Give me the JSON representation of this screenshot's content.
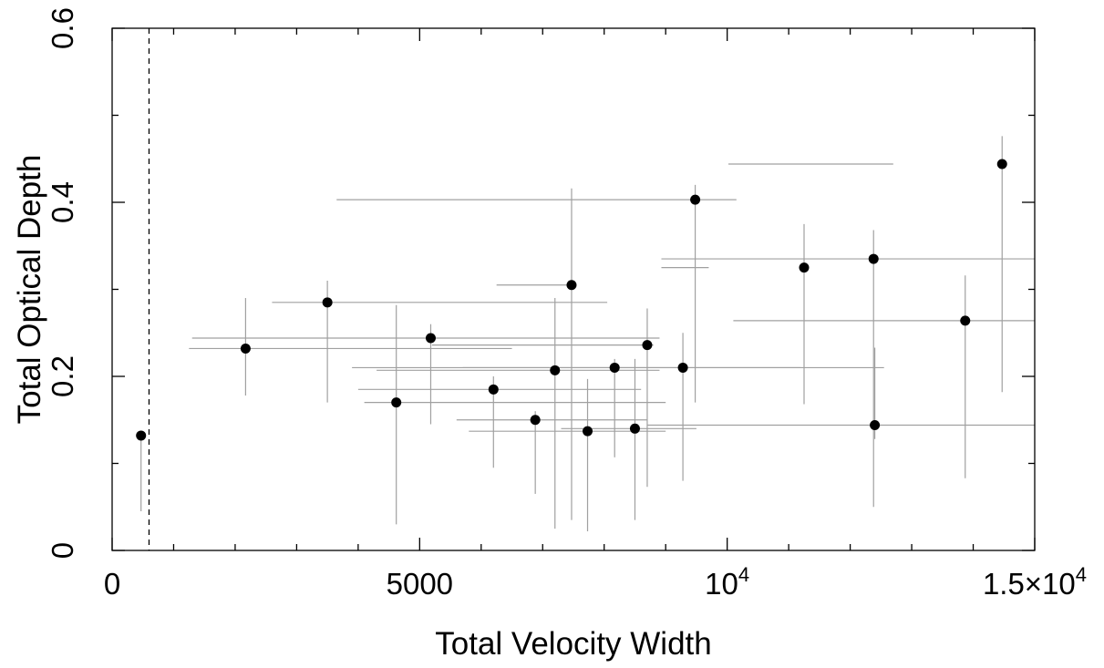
{
  "chart_data": {
    "type": "scatter",
    "title": "",
    "xlabel": "Total Velocity Width",
    "ylabel": "Total Optical Depth",
    "xlim": [
      0,
      15000
    ],
    "ylim": [
      0,
      0.6
    ],
    "x_ticks": [
      {
        "value": 0,
        "label": "0"
      },
      {
        "value": 5000,
        "label": "5000"
      },
      {
        "value": 10000,
        "label": "10",
        "exp": "4"
      },
      {
        "value": 15000,
        "label": "1.5×10",
        "exp": "4"
      }
    ],
    "y_ticks": [
      {
        "value": 0,
        "label": "0"
      },
      {
        "value": 0.2,
        "label": "0.2"
      },
      {
        "value": 0.4,
        "label": "0.4"
      },
      {
        "value": 0.6,
        "label": "0.6"
      }
    ],
    "x_minor_step": 1000,
    "y_minor_step": 0.1,
    "reference_line_x": 600,
    "grid": false,
    "points": [
      {
        "x": 470,
        "y": 0.132,
        "xlo": 470,
        "xhi": 470,
        "ylo": 0.045,
        "yhi": 0.132
      },
      {
        "x": 2170,
        "y": 0.232,
        "xlo": 1250,
        "xhi": 6500,
        "ylo": 0.178,
        "yhi": 0.29
      },
      {
        "x": 3500,
        "y": 0.285,
        "xlo": 2600,
        "xhi": 8050,
        "ylo": 0.17,
        "yhi": 0.31
      },
      {
        "x": 4620,
        "y": 0.17,
        "xlo": 4100,
        "xhi": 9000,
        "ylo": 0.03,
        "yhi": 0.282
      },
      {
        "x": 5180,
        "y": 0.244,
        "xlo": 1300,
        "xhi": 8900,
        "ylo": 0.145,
        "yhi": 0.26
      },
      {
        "x": 6200,
        "y": 0.185,
        "xlo": 4000,
        "xhi": 8600,
        "ylo": 0.095,
        "yhi": 0.2
      },
      {
        "x": 6880,
        "y": 0.15,
        "xlo": 5600,
        "xhi": 8700,
        "ylo": 0.065,
        "yhi": 0.16
      },
      {
        "x": 7200,
        "y": 0.207,
        "xlo": 4300,
        "xhi": 8900,
        "ylo": 0.025,
        "yhi": 0.29
      },
      {
        "x": 7470,
        "y": 0.305,
        "xlo": 6250,
        "xhi": 7500,
        "ylo": 0.035,
        "yhi": 0.416
      },
      {
        "x": 7730,
        "y": 0.137,
        "xlo": 5800,
        "xhi": 9000,
        "ylo": 0.022,
        "yhi": 0.197
      },
      {
        "x": 8170,
        "y": 0.21,
        "xlo": 3900,
        "xhi": 11200,
        "ylo": 0.107,
        "yhi": 0.22
      },
      {
        "x": 8500,
        "y": 0.14,
        "xlo": 7300,
        "xhi": 9500,
        "ylo": 0.035,
        "yhi": 0.22
      },
      {
        "x": 8700,
        "y": 0.236,
        "xlo": 5200,
        "xhi": 8800,
        "ylo": 0.073,
        "yhi": 0.278
      },
      {
        "x": 9280,
        "y": 0.21,
        "xlo": 5700,
        "xhi": 12550,
        "ylo": 0.08,
        "yhi": 0.25
      },
      {
        "x": 9480,
        "y": 0.403,
        "xlo": 3650,
        "xhi": 10150,
        "ylo": 0.17,
        "yhi": 0.42
      },
      {
        "x": 11250,
        "y": 0.325,
        "xlo": 8930,
        "xhi": 9700,
        "ylo": 0.168,
        "yhi": 0.375
      },
      {
        "x": 12380,
        "y": 0.335,
        "xlo": 8930,
        "xhi": 15000,
        "ylo": 0.05,
        "yhi": 0.368
      },
      {
        "x": 12400,
        "y": 0.144,
        "xlo": 8700,
        "xhi": 15000,
        "ylo": 0.128,
        "yhi": 0.233
      },
      {
        "x": 13870,
        "y": 0.264,
        "xlo": 10100,
        "xhi": 15000,
        "ylo": 0.083,
        "yhi": 0.316
      },
      {
        "x": 14470,
        "y": 0.444,
        "xlo": 10020,
        "xhi": 12700,
        "ylo": 0.182,
        "yhi": 0.476
      }
    ],
    "colors": {
      "point": "#000000",
      "error_bar": "#a0a0a0",
      "axis": "#000000",
      "reference_line": "#000000"
    }
  }
}
